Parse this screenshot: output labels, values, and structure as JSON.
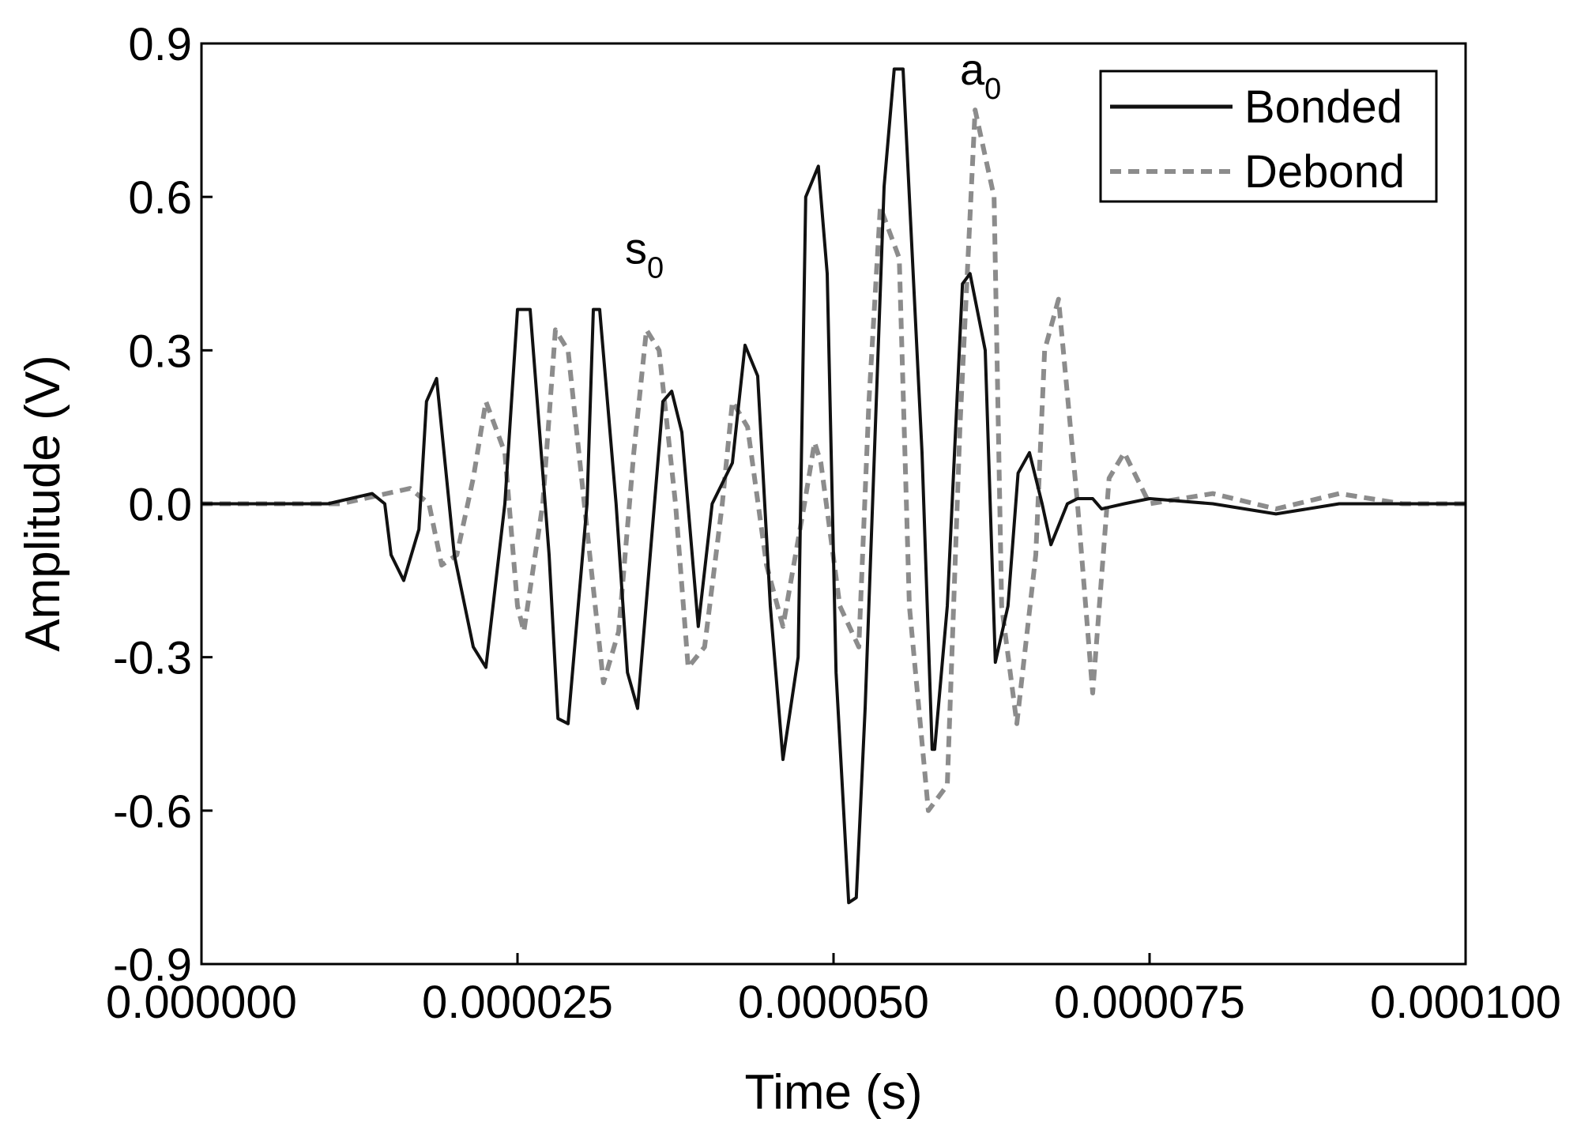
{
  "chart_data": {
    "type": "line",
    "title": "",
    "xlabel": "Time (s)",
    "ylabel": "Amplitude (V)",
    "xlim": [
      0,
      0.0001
    ],
    "ylim": [
      -0.9,
      0.9
    ],
    "xticks": [
      {
        "value": 0.0,
        "label": "0.000000"
      },
      {
        "value": 2.5e-05,
        "label": "0.000025"
      },
      {
        "value": 5e-05,
        "label": "0.000050"
      },
      {
        "value": 7.5e-05,
        "label": "0.000075"
      },
      {
        "value": 0.0001,
        "label": "0.000100"
      }
    ],
    "yticks": [
      {
        "value": 0.9,
        "label": "0.9"
      },
      {
        "value": 0.6,
        "label": "0.6"
      },
      {
        "value": 0.3,
        "label": "0.3"
      },
      {
        "value": 0.0,
        "label": "0.0"
      },
      {
        "value": -0.3,
        "label": "-0.3"
      },
      {
        "value": -0.6,
        "label": "-0.6"
      },
      {
        "value": -0.9,
        "label": "-0.9"
      }
    ],
    "grid": false,
    "legend_position": "top-right",
    "series": [
      {
        "name": "Bonded",
        "color": "#111111",
        "style": "solid",
        "x": [
          0.0,
          1e-05,
          1.35e-05,
          1.45e-05,
          1.5e-05,
          1.6e-05,
          1.72e-05,
          1.78e-05,
          1.86e-05,
          2e-05,
          2.15e-05,
          2.25e-05,
          2.4e-05,
          2.5e-05,
          2.6e-05,
          2.75e-05,
          2.82e-05,
          2.9e-05,
          3.05e-05,
          3.1e-05,
          3.15e-05,
          3.28e-05,
          3.37e-05,
          3.45e-05,
          3.55e-05,
          3.65e-05,
          3.72e-05,
          3.8e-05,
          3.93e-05,
          4.04e-05,
          4.2e-05,
          4.3e-05,
          4.4e-05,
          4.5e-05,
          4.6e-05,
          4.72e-05,
          4.78e-05,
          4.88e-05,
          4.95e-05,
          5.02e-05,
          5.12e-05,
          5.18e-05,
          5.25e-05,
          5.4e-05,
          5.48e-05,
          5.55e-05,
          5.7e-05,
          5.78e-05,
          5.8e-05,
          5.9e-05,
          6.02e-05,
          6.08e-05,
          6.2e-05,
          6.28e-05,
          6.38e-05,
          6.46e-05,
          6.55e-05,
          6.65e-05,
          6.72e-05,
          6.85e-05,
          6.93e-05,
          7.05e-05,
          7.12e-05,
          7.3e-05,
          7.5e-05,
          8e-05,
          8.5e-05,
          9e-05,
          9.5e-05,
          0.0001
        ],
        "y": [
          0.0,
          0.0,
          0.02,
          0.0,
          -0.1,
          -0.15,
          -0.05,
          0.2,
          0.245,
          -0.1,
          -0.28,
          -0.32,
          0.0,
          0.38,
          0.38,
          -0.1,
          -0.42,
          -0.43,
          0.0,
          0.38,
          0.38,
          0.0,
          -0.33,
          -0.4,
          -0.1,
          0.2,
          0.22,
          0.14,
          -0.24,
          0.0,
          0.08,
          0.31,
          0.25,
          -0.2,
          -0.5,
          -0.3,
          0.6,
          0.66,
          0.45,
          -0.33,
          -0.78,
          -0.77,
          -0.4,
          0.62,
          0.85,
          0.85,
          0.1,
          -0.48,
          -0.48,
          -0.2,
          0.43,
          0.45,
          0.3,
          -0.31,
          -0.2,
          0.06,
          0.1,
          0.0,
          -0.08,
          0.0,
          0.01,
          0.01,
          -0.01,
          0.0,
          0.01,
          0.0,
          -0.02,
          0.0,
          0.0,
          0.0
        ]
      },
      {
        "name": "Debond",
        "color": "#8c8c8c",
        "style": "dashed",
        "x": [
          0.0,
          1.1e-05,
          1.65e-05,
          1.8e-05,
          1.9e-05,
          2.02e-05,
          2.15e-05,
          2.25e-05,
          2.4e-05,
          2.5e-05,
          2.55e-05,
          2.7e-05,
          2.8e-05,
          2.9e-05,
          3.05e-05,
          3.18e-05,
          3.3e-05,
          3.42e-05,
          3.52e-05,
          3.62e-05,
          3.75e-05,
          3.85e-05,
          3.98e-05,
          4.12e-05,
          4.2e-05,
          4.32e-05,
          4.47e-05,
          4.6e-05,
          4.77e-05,
          4.85e-05,
          4.9e-05,
          5.05e-05,
          5.2e-05,
          5.28e-05,
          5.37e-05,
          5.52e-05,
          5.6e-05,
          5.75e-05,
          5.9e-05,
          6e-05,
          6.12e-05,
          6.27e-05,
          6.33e-05,
          6.45e-05,
          6.6e-05,
          6.67e-05,
          6.78e-05,
          6.93e-05,
          7.05e-05,
          7.18e-05,
          7.3e-05,
          7.5e-05,
          8e-05,
          8.5e-05,
          9e-05,
          9.5e-05,
          0.0001
        ],
        "y": [
          0.0,
          0.0,
          0.03,
          0.0,
          -0.12,
          -0.1,
          0.05,
          0.2,
          0.1,
          -0.2,
          -0.25,
          0.0,
          0.34,
          0.3,
          -0.05,
          -0.35,
          -0.25,
          0.1,
          0.34,
          0.3,
          0.0,
          -0.32,
          -0.28,
          0.0,
          0.2,
          0.15,
          -0.12,
          -0.24,
          0.0,
          0.12,
          0.08,
          -0.2,
          -0.28,
          0.2,
          0.58,
          0.48,
          -0.2,
          -0.6,
          -0.55,
          0.15,
          0.77,
          0.6,
          -0.2,
          -0.43,
          -0.1,
          0.3,
          0.4,
          0.0,
          -0.37,
          0.05,
          0.1,
          0.0,
          0.02,
          -0.01,
          0.02,
          0.0,
          0.0
        ]
      }
    ],
    "annotations": [
      {
        "base": "s",
        "sub": "0",
        "x": 3.35e-05,
        "y": 0.47
      },
      {
        "base": "a",
        "sub": "0",
        "x": 6e-05,
        "y": 0.82
      }
    ]
  }
}
